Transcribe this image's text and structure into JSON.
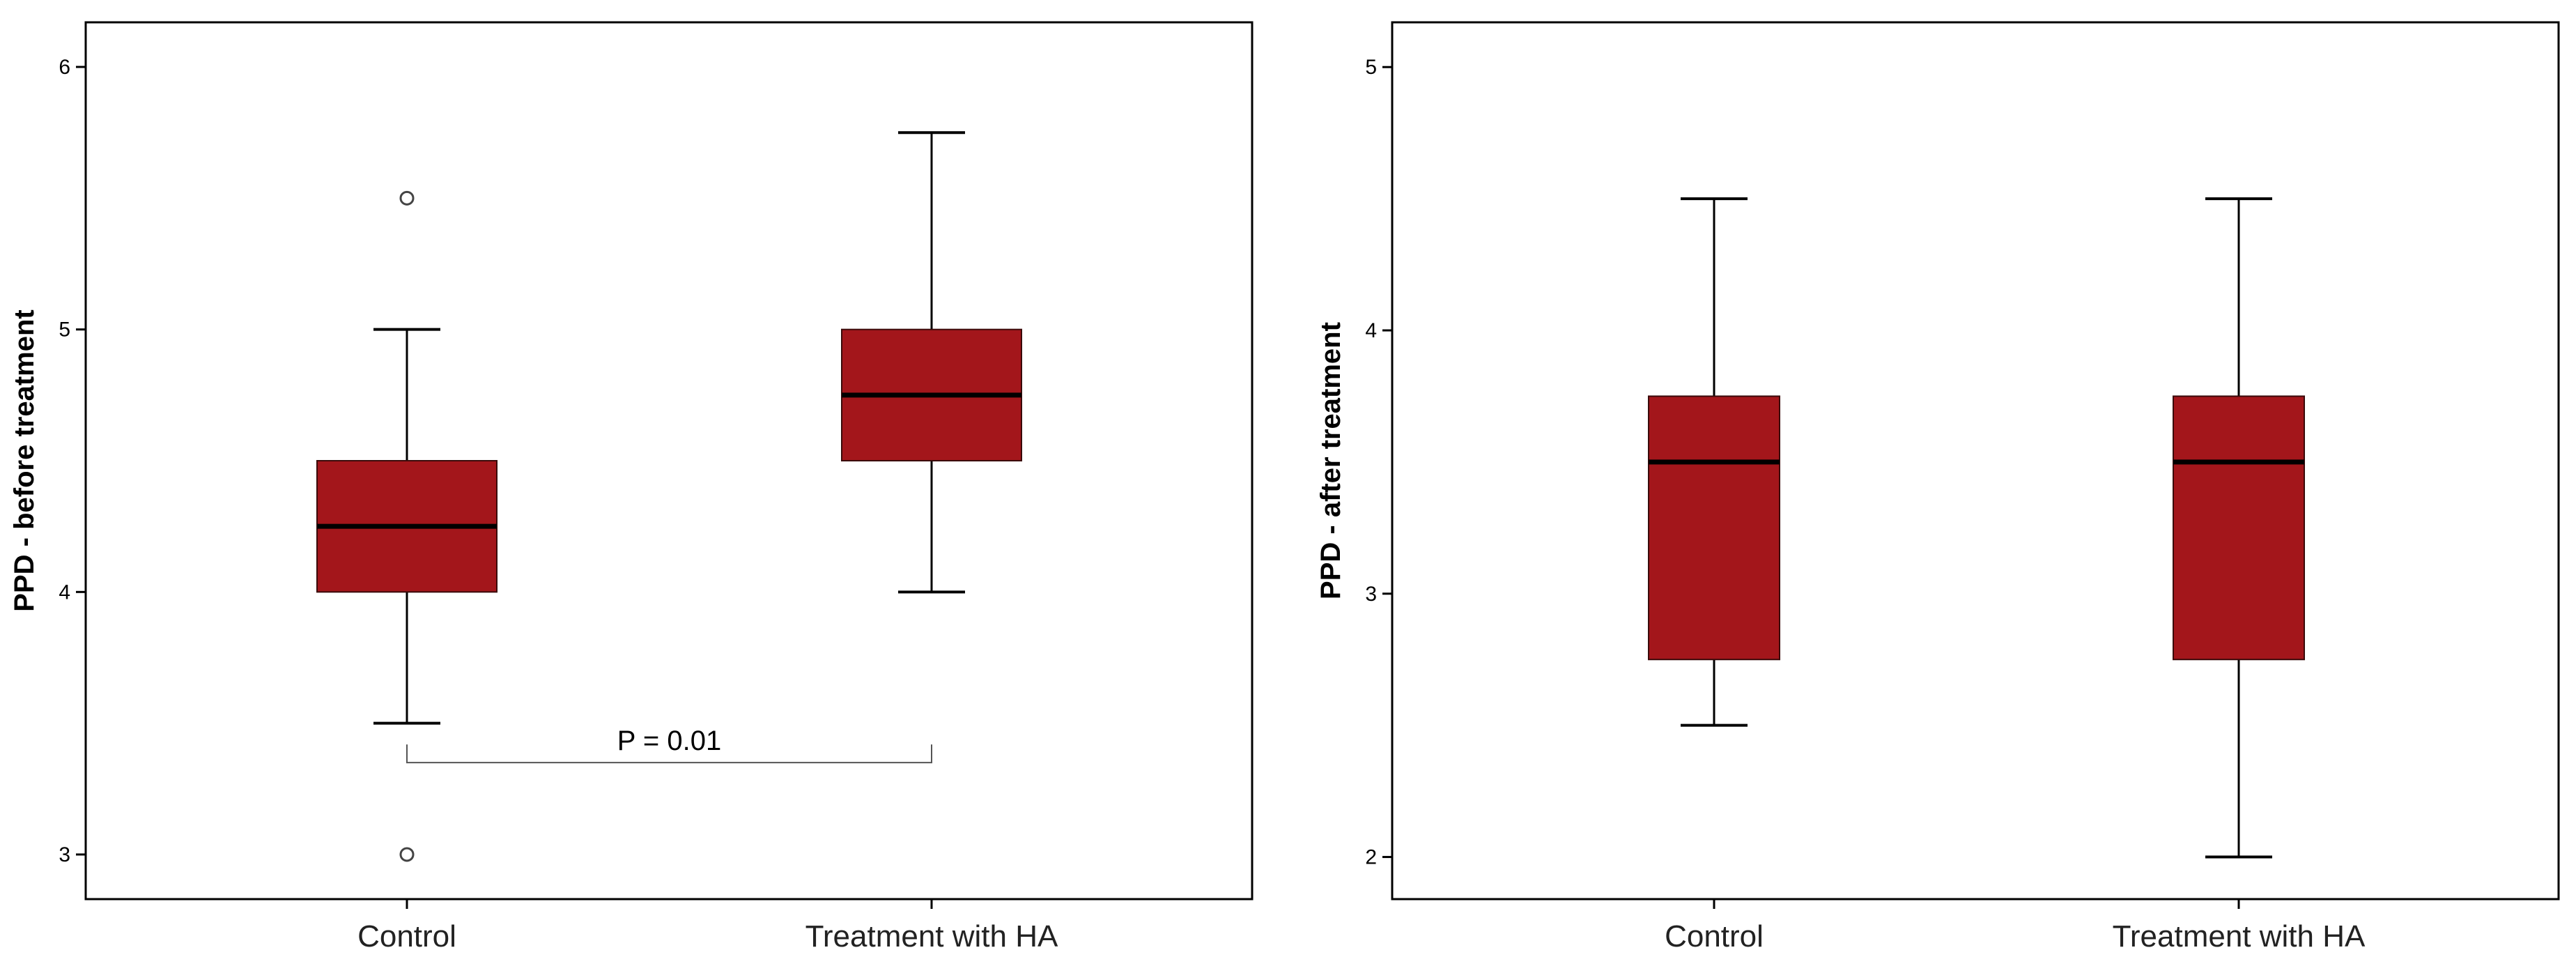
{
  "colors": {
    "box_fill": "#A3161B",
    "box_stroke": "#3a0a0a",
    "median": "#000000",
    "frame": "#000000",
    "outlier": "#444444"
  },
  "chart_data": [
    {
      "type": "boxplot",
      "ylabel": "PPD - before treatment",
      "ylim": [
        2.83,
        6.17
      ],
      "yticks": [
        3,
        4,
        5,
        6
      ],
      "ytick_labels": [
        "3",
        "4",
        "5",
        "6"
      ],
      "categories": [
        "Control",
        "Treatment with HA"
      ],
      "boxes": [
        {
          "whisker_low": 3.5,
          "q1": 4.0,
          "median": 4.25,
          "q3": 4.5,
          "whisker_high": 5.0,
          "outliers": [
            5.5,
            3.0
          ]
        },
        {
          "whisker_low": 4.0,
          "q1": 4.5,
          "median": 4.75,
          "q3": 5.0,
          "whisker_high": 5.75,
          "outliers": []
        }
      ],
      "annotation": {
        "text": "P = 0.01",
        "from": 0,
        "to": 1,
        "y": 3.35
      }
    },
    {
      "type": "boxplot",
      "ylabel": "PPD - after treatment",
      "ylim": [
        1.84,
        5.17
      ],
      "yticks": [
        2,
        3,
        4,
        5
      ],
      "ytick_labels": [
        "2",
        "3",
        "4",
        "5"
      ],
      "categories": [
        "Control",
        "Treatment with HA"
      ],
      "boxes": [
        {
          "whisker_low": 2.5,
          "q1": 2.75,
          "median": 3.5,
          "q3": 3.75,
          "whisker_high": 4.5,
          "outliers": []
        },
        {
          "whisker_low": 2.0,
          "q1": 2.75,
          "median": 3.5,
          "q3": 3.75,
          "whisker_high": 4.5,
          "outliers": []
        }
      ]
    }
  ]
}
